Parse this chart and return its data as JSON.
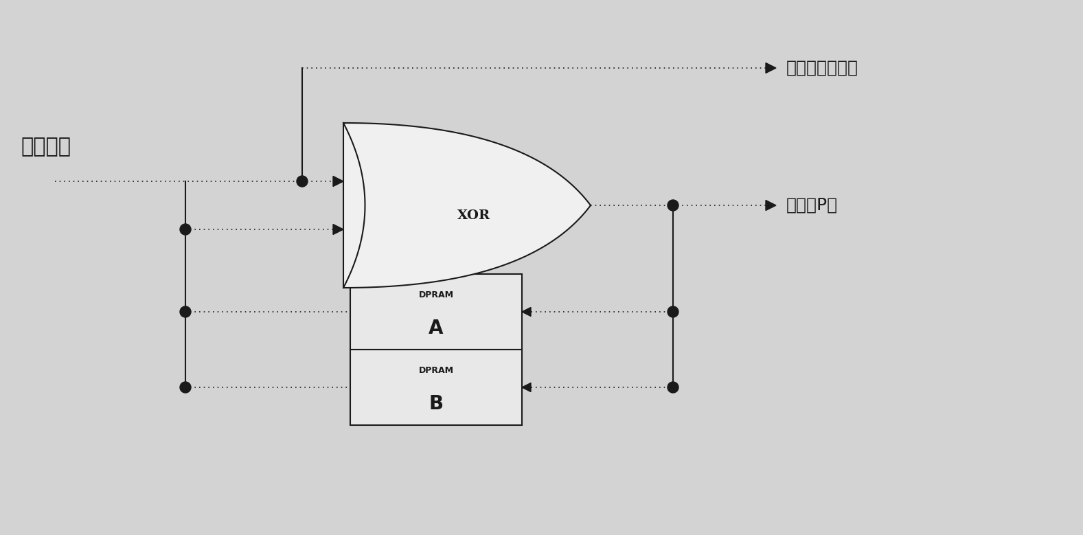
{
  "background_color": "#d3d3d3",
  "line_color": "#1a1a1a",
  "text_color": "#1a1a1a",
  "box_fill": "#e8e8e8",
  "xor_fill": "#f0f0f0",
  "label_data_in": "数据流入",
  "label_disk_channel": "到某个硬盘通道",
  "label_parity_disk": "到校验P盘",
  "label_dpram_a_top": "DPRAM",
  "label_dpram_a_bot": "A",
  "label_dpram_b_top": "DPRAM",
  "label_dpram_b_bot": "B",
  "label_xor": "XOR",
  "fig_width": 15.77,
  "fig_height": 7.79,
  "dpi": 100
}
